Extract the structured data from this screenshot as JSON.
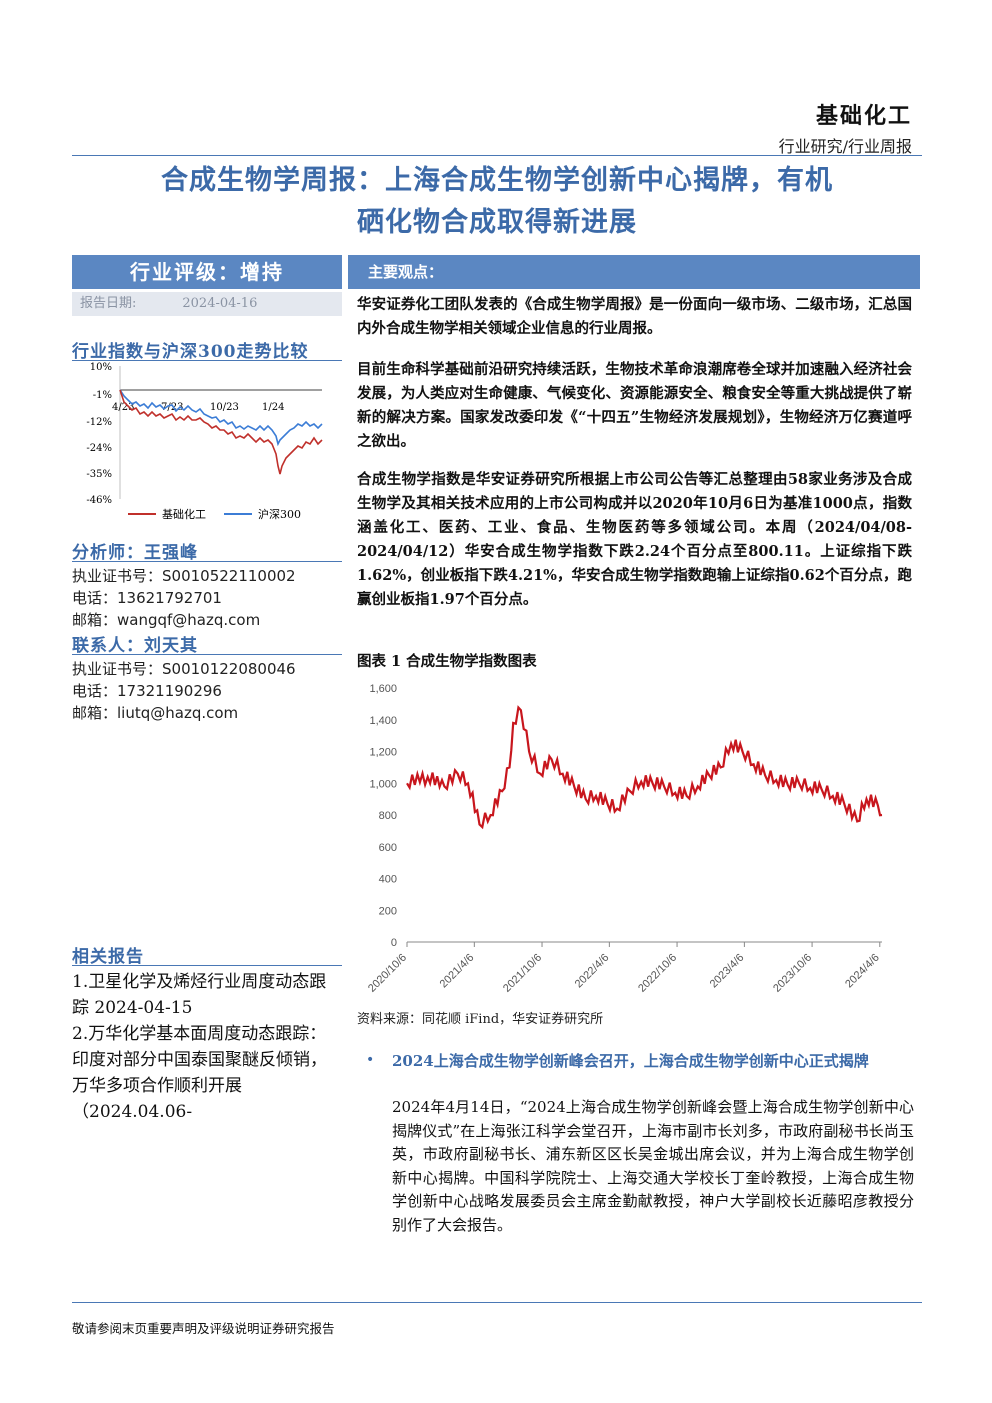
{
  "header": {
    "sector": "基础化工",
    "report_type": "行业研究/行业周报",
    "title_line1": "合成生物学周报：上海合成生物学创新中心揭牌，有机",
    "title_line2": "硒化物合成取得新进展"
  },
  "sidebar": {
    "rating": "行业评级：增持",
    "date_label": "报告日期:",
    "date_value": "2024-04-16",
    "trend_title": "行业指数与沪深300走势比较",
    "trend_chart": {
      "y_ticks": [
        "10%",
        "-1%",
        "-12%",
        "-24%",
        "-35%",
        "-46%"
      ],
      "x_ticks": [
        "4/23",
        "7/23",
        "10/23",
        "1/24"
      ],
      "legend": [
        "基础化工",
        "沪深300"
      ],
      "colors": {
        "sector": "#c0302b",
        "index": "#3c7dd6"
      }
    },
    "analyst_head": "分析师：王强峰",
    "analyst_lines": [
      "执业证书号：S0010522110002",
      "电话：13621792701",
      "邮箱：wangqf@hazq.com"
    ],
    "contact_head": "联系人：刘天其",
    "contact_lines": [
      "执业证书号：S0010122080046",
      "电话：17321190296",
      "邮箱：liutq@hazq.com"
    ],
    "related_head": "相关报告",
    "related_1": "1.卫星化学及烯烃行业周度动态跟踪 2024-04-15",
    "related_2": "2.万华化学基本面周度动态跟踪：印度对部分中国泰国聚醚反倾销，万华多项合作顺利开展 （2024.04.06-"
  },
  "main": {
    "key_points_label": "主要观点：",
    "para1": "华安证券化工团队发表的《合成生物学周报》是一份面向一级市场、二级市场，汇总国内外合成生物学相关领域企业信息的行业周报。",
    "para2": "目前生命科学基础前沿研究持续活跃，生物技术革命浪潮席卷全球并加速融入经济社会发展，为人类应对生命健康、气候变化、资源能源安全、粮食安全等重大挑战提供了崭新的解决方案。国家发改委印发《“十四五”生物经济发展规划》，生物经济万亿赛道呼之欲出。",
    "para3": "合成生物学指数是华安证券研究所根据上市公司公告等汇总整理由58家业务涉及合成生物学及其相关技术应用的上市公司构成并以2020年10月6日为基准1000点，指数涵盖化工、医药、工业、食品、生物医药等多领域公司。本周（2024/04/08-2024/04/12）华安合成生物学指数下跌2.24个百分点至800.11。上证综指下跌1.62%，创业板指下跌4.21%，华安合成生物学指数跑输上证综指0.62个百分点，跑赢创业板指1.97个百分点。",
    "figure_title": "图表 1 合成生物学指数图表",
    "figure_source": "资料来源：同花顺 iFind，华安证券研究所",
    "news_title": "2024上海合成生物学创新峰会召开，上海合成生物学创新中心正式揭牌",
    "news_body": "2024年4月14日，“2024上海合成生物学创新峰会暨上海合成生物学创新中心揭牌仪式”在上海张江科学会堂召开，上海市副市长刘多，市政府副秘书长尚玉英，市政府副秘书长、浦东新区区长吴金城出席会议，并为上海合成生物学创新中心揭牌。中国科学院院士、上海交通大学校长丁奎岭教授，上海合成生物学创新中心战略发展委员会主席金勤献教授，神户大学副校长近藤昭彦教授分别作了大会报告。"
  },
  "chart_data": {
    "type": "line",
    "series": [
      {
        "name": "",
        "color": "#c8161d",
        "x": [
          "2020/10/6",
          "2020/12/1",
          "2021/1/15",
          "2021/2/20",
          "2021/3/20",
          "2021/4/20",
          "2021/5/20",
          "2021/6/20",
          "2021/7/10",
          "2021/7/20",
          "2021/8/10",
          "2021/9/1",
          "2021/10/1",
          "2021/11/1",
          "2021/12/1",
          "2022/1/1",
          "2022/2/1",
          "2022/3/1",
          "2022/4/1",
          "2022/4/27",
          "2022/6/1",
          "2022/7/1",
          "2022/8/1",
          "2022/9/1",
          "2022/10/1",
          "2022/11/1",
          "2022/12/1",
          "2023/1/1",
          "2023/2/1",
          "2023/3/1",
          "2023/4/1",
          "2023/5/1",
          "2023/6/1",
          "2023/7/1",
          "2023/8/1",
          "2023/9/1",
          "2023/10/1",
          "2023/11/1",
          "2023/12/1",
          "2024/1/1",
          "2024/2/5",
          "2024/3/1",
          "2024/4/1",
          "2024/4/12"
        ],
        "y": [
          1000,
          1040,
          980,
          1060,
          1000,
          740,
          800,
          950,
          1100,
          1380,
          1460,
          1200,
          1060,
          1150,
          1060,
          980,
          900,
          920,
          870,
          840,
          950,
          1010,
          1000,
          980,
          940,
          920,
          980,
          1050,
          1100,
          1250,
          1200,
          1120,
          1050,
          1020,
          990,
          1000,
          970,
          960,
          920,
          870,
          760,
          900,
          860,
          800.11
        ]
      }
    ],
    "x_ticks": [
      "2020/10/6",
      "2021/4/6",
      "2021/10/6",
      "2022/4/6",
      "2022/10/6",
      "2023/4/6",
      "2023/10/6",
      "2024/4/6"
    ],
    "y_ticks": [
      "0",
      "200",
      "400",
      "600",
      "800",
      "1,000",
      "1,200",
      "1,400",
      "1,600"
    ],
    "ylim": [
      0,
      1600
    ],
    "title": "",
    "xlabel": "",
    "ylabel": "",
    "grid": false
  }
}
